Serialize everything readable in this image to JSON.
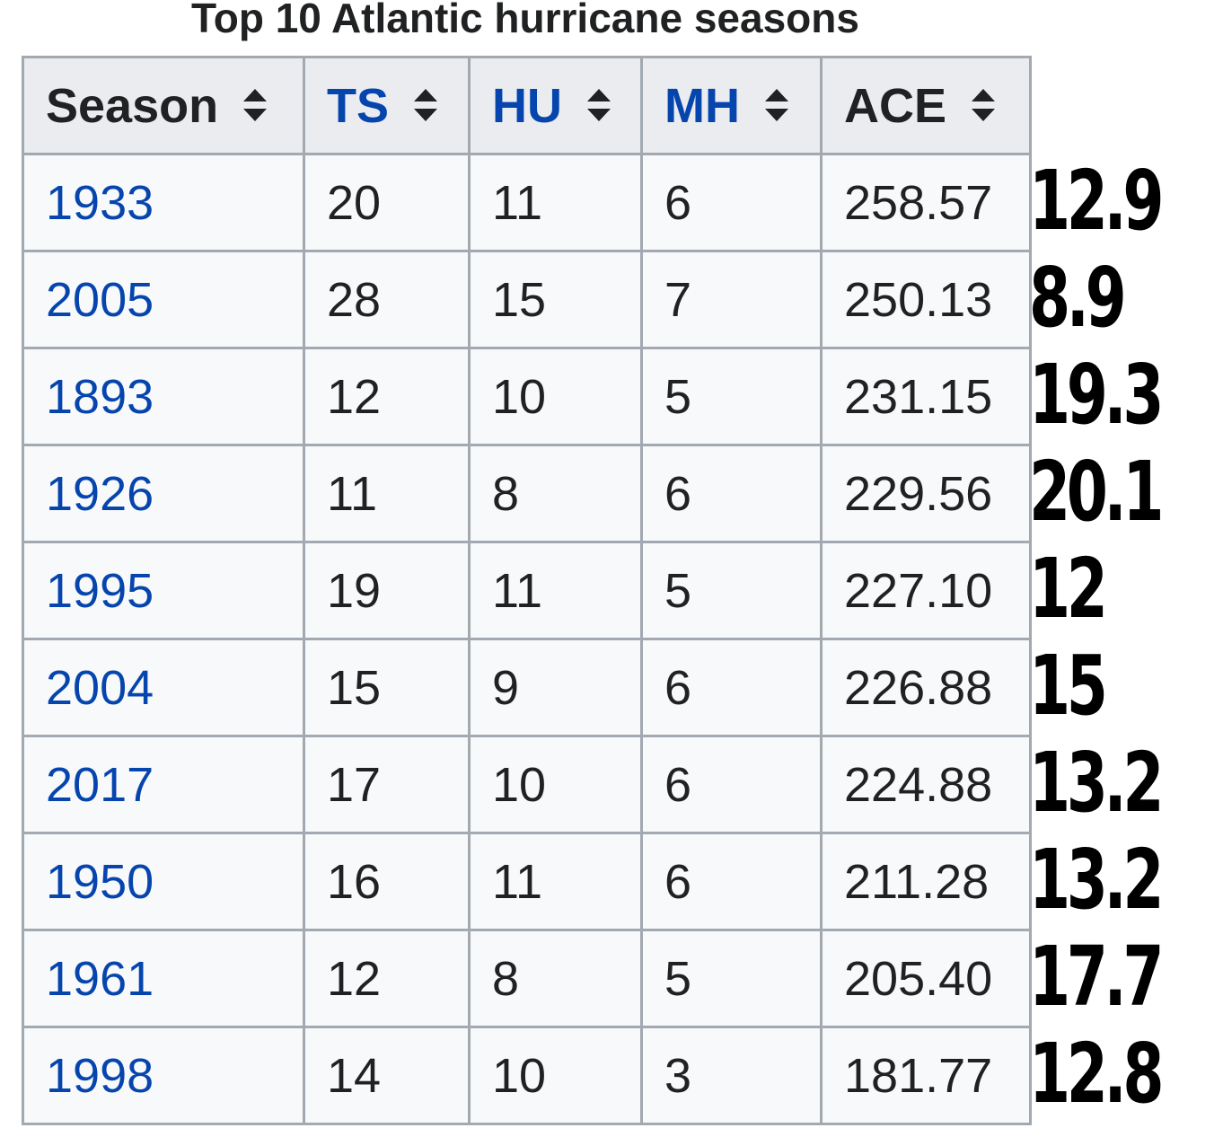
{
  "title": "Top 10 Atlantic hurricane seasons",
  "columns": [
    {
      "label": "Season",
      "linked": false,
      "sort_icon": "sort-updown-icon"
    },
    {
      "label": "TS",
      "linked": true,
      "sort_icon": "sort-updown-icon"
    },
    {
      "label": "HU",
      "linked": true,
      "sort_icon": "sort-updown-icon"
    },
    {
      "label": "MH",
      "linked": true,
      "sort_icon": "sort-updown-icon"
    },
    {
      "label": "ACE",
      "linked": false,
      "sort_icon": "sort-updown-icon"
    }
  ],
  "rows": [
    {
      "season": "1933",
      "ts": "20",
      "hu": "11",
      "mh": "6",
      "ace": "258.57"
    },
    {
      "season": "2005",
      "ts": "28",
      "hu": "15",
      "mh": "7",
      "ace": "250.13"
    },
    {
      "season": "1893",
      "ts": "12",
      "hu": "10",
      "mh": "5",
      "ace": "231.15"
    },
    {
      "season": "1926",
      "ts": "11",
      "hu": "8",
      "mh": "6",
      "ace": "229.56"
    },
    {
      "season": "1995",
      "ts": "19",
      "hu": "11",
      "mh": "5",
      "ace": "227.10"
    },
    {
      "season": "2004",
      "ts": "15",
      "hu": "9",
      "mh": "6",
      "ace": "226.88"
    },
    {
      "season": "2017",
      "ts": "17",
      "hu": "10",
      "mh": "6",
      "ace": "224.88"
    },
    {
      "season": "1950",
      "ts": "16",
      "hu": "11",
      "mh": "6",
      "ace": "211.28"
    },
    {
      "season": "1961",
      "ts": "12",
      "hu": "8",
      "mh": "5",
      "ace": "205.40"
    },
    {
      "season": "1998",
      "ts": "14",
      "hu": "10",
      "mh": "3",
      "ace": "181.77"
    }
  ],
  "side_values": [
    "12.9",
    "8.9",
    "19.3",
    "20.1",
    "12",
    "15",
    "13.2",
    "13.2",
    "17.7",
    "12.8"
  ],
  "colors": {
    "link": "#0645ad",
    "text": "#202122",
    "header_bg": "#eaecf0",
    "cell_bg": "#f8f9fa",
    "border": "#a2a9b1"
  }
}
